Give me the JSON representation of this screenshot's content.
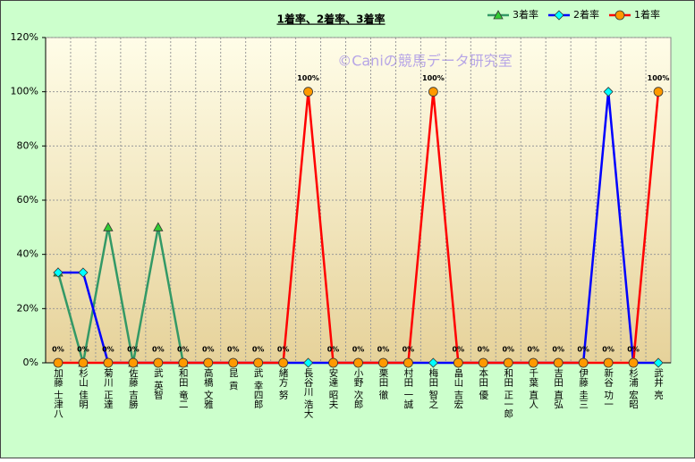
{
  "chart_data": {
    "type": "line",
    "title": "1着率、2着率、3着率",
    "annotation": "©Caniの競馬データ研究室",
    "categories": [
      "加藤 士津八",
      "杉山 佳明",
      "菊川 正達",
      "佐藤 吉勝",
      "武 英智",
      "和田 竜二",
      "高橋 文雅",
      "昆 貢",
      "武 幸四郎",
      "緒方 努",
      "長谷川 浩大",
      "安達 昭夫",
      "小野 次郎",
      "栗田 徹",
      "村田 一誠",
      "梅田 智之",
      "畠山 吉宏",
      "本田 優",
      "和田 正一郎",
      "千葉 直人",
      "吉田 直弘",
      "伊藤 圭三",
      "新谷 功一",
      "杉浦 宏昭",
      "武井 亮"
    ],
    "series": [
      {
        "name": "3着率",
        "color": "#339966",
        "marker": "triangle",
        "marker_color": "#33cc33",
        "values": [
          33.3,
          0,
          50,
          0,
          50,
          0,
          null,
          null,
          null,
          null,
          null,
          null,
          null,
          null,
          null,
          null,
          null,
          null,
          null,
          null,
          null,
          null,
          null,
          null,
          null
        ]
      },
      {
        "name": "2着率",
        "color": "#0000ff",
        "marker": "diamond",
        "marker_color": "#00ffff",
        "values": [
          33.3,
          33.3,
          0,
          0,
          0,
          0,
          0,
          0,
          0,
          0,
          0,
          0,
          0,
          0,
          0,
          0,
          0,
          0,
          0,
          0,
          0,
          0,
          100,
          0,
          0
        ]
      },
      {
        "name": "1着率",
        "color": "#ff0000",
        "marker": "circle",
        "marker_color": "#ff9900",
        "values": [
          0,
          0,
          0,
          0,
          0,
          0,
          0,
          0,
          0,
          0,
          100,
          0,
          0,
          0,
          0,
          100,
          0,
          0,
          0,
          0,
          0,
          0,
          0,
          0,
          100
        ],
        "value_labels": [
          "0%",
          "0%",
          "0%",
          "0%",
          "0%",
          "0%",
          "0%",
          "0%",
          "0%",
          "0%",
          "100%",
          "0%",
          "0%",
          "0%",
          "0%",
          "100%",
          "0%",
          "0%",
          "0%",
          "0%",
          "0%",
          "0%",
          "0%",
          "0%",
          "100%"
        ]
      }
    ],
    "ylim": [
      0,
      120
    ],
    "yticks": [
      {
        "value": 0,
        "label": "0%"
      },
      {
        "value": 20,
        "label": "20%"
      },
      {
        "value": 40,
        "label": "40%"
      },
      {
        "value": 60,
        "label": "60%"
      },
      {
        "value": 80,
        "label": "80%"
      },
      {
        "value": 100,
        "label": "100%"
      },
      {
        "value": 120,
        "label": "120%"
      }
    ],
    "grid": true,
    "legend": "top-right"
  }
}
